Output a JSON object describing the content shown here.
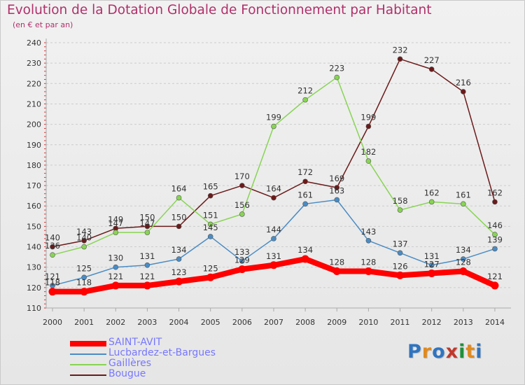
{
  "header": {
    "title": "Evolution de la Dotation Globale de Fonctionnement par Habitant",
    "subtitle": "(en € et par an)"
  },
  "logo": {
    "text": "Proxiti",
    "letter_colors": [
      "#2f74c0",
      "#e08a1e",
      "#2f74c0",
      "#c0392b",
      "#1f8f3a",
      "#e08a1e",
      "#2f74c0"
    ]
  },
  "chart_data": {
    "type": "line",
    "title": "Evolution de la Dotation Globale de Fonctionnement par Habitant",
    "subtitle": "(en € et par an)",
    "x": [
      2000,
      2001,
      2002,
      2003,
      2004,
      2005,
      2006,
      2007,
      2008,
      2009,
      2010,
      2011,
      2012,
      2013,
      2014
    ],
    "ylim": [
      110,
      240
    ],
    "yticks": [
      110,
      120,
      130,
      140,
      150,
      160,
      170,
      180,
      190,
      200,
      210,
      220,
      230,
      240
    ],
    "grid": "horizontal dashed",
    "legend_position": "bottom-left",
    "series": [
      {
        "name": "Bougue",
        "color": "#6b1a1a",
        "values": [
          140,
          143,
          149,
          150,
          150,
          165,
          170,
          164,
          172,
          169,
          199,
          232,
          227,
          216,
          162
        ]
      },
      {
        "name": "Gaillères",
        "color": "#88d454",
        "values": [
          136,
          140,
          147,
          147,
          164,
          151,
          156,
          199,
          212,
          223,
          182,
          158,
          162,
          161,
          146
        ]
      },
      {
        "name": "Lucbardez-et-Bargues",
        "color": "#4a8cc4",
        "values": [
          121,
          125,
          130,
          131,
          134,
          145,
          133,
          144,
          161,
          163,
          143,
          137,
          131,
          134,
          139
        ]
      },
      {
        "name": "SAINT-AVIT",
        "color": "#ff0000",
        "values": [
          118,
          118,
          121,
          121,
          123,
          125,
          129,
          131,
          134,
          128,
          128,
          126,
          127,
          128,
          121
        ]
      }
    ]
  }
}
